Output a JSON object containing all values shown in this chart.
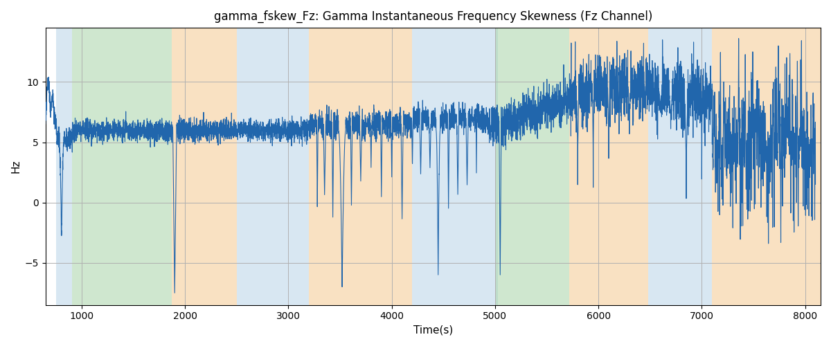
{
  "title": "gamma_fskew_Fz: Gamma Instantaneous Frequency Skewness (Fz Channel)",
  "xlabel": "Time(s)",
  "ylabel": "Hz",
  "xlim": [
    650,
    8150
  ],
  "ylim": [
    -8.5,
    14.5
  ],
  "line_color": "#2166AC",
  "line_width": 0.8,
  "bg_color": "#ffffff",
  "bands": [
    {
      "xstart": 750,
      "xend": 910,
      "color": "#B8D4E8",
      "alpha": 0.55
    },
    {
      "xstart": 910,
      "xend": 1870,
      "color": "#A8D4A8",
      "alpha": 0.55
    },
    {
      "xstart": 1870,
      "xend": 2500,
      "color": "#F5C990",
      "alpha": 0.55
    },
    {
      "xstart": 2500,
      "xend": 2720,
      "color": "#B8D4E8",
      "alpha": 0.55
    },
    {
      "xstart": 2720,
      "xend": 3200,
      "color": "#B8D4E8",
      "alpha": 0.55
    },
    {
      "xstart": 3200,
      "xend": 4200,
      "color": "#F5C990",
      "alpha": 0.55
    },
    {
      "xstart": 4200,
      "xend": 4930,
      "color": "#B8D4E8",
      "alpha": 0.55
    },
    {
      "xstart": 4930,
      "xend": 5030,
      "color": "#B8D4E8",
      "alpha": 0.55
    },
    {
      "xstart": 5000,
      "xend": 5720,
      "color": "#A8D4A8",
      "alpha": 0.55
    },
    {
      "xstart": 5720,
      "xend": 6480,
      "color": "#F5C990",
      "alpha": 0.55
    },
    {
      "xstart": 6480,
      "xend": 7100,
      "color": "#B8D4E8",
      "alpha": 0.55
    },
    {
      "xstart": 7100,
      "xend": 8200,
      "color": "#F5C990",
      "alpha": 0.55
    }
  ],
  "xticks": [
    1000,
    2000,
    3000,
    4000,
    5000,
    6000,
    7000,
    8000
  ]
}
